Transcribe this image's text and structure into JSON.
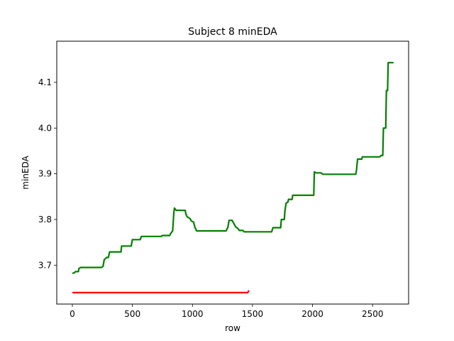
{
  "chart_data": {
    "type": "line",
    "title": "Subject 8 minEDA",
    "xlabel": "row",
    "ylabel": "minEDA",
    "xlim": [
      -130,
      2800
    ],
    "ylim": [
      3.615,
      4.19
    ],
    "xticks": [
      0,
      500,
      1000,
      1500,
      2000,
      2500
    ],
    "yticks": [
      3.7,
      3.8,
      3.9,
      4.0,
      4.1
    ],
    "ytick_labels": [
      "3.7",
      "3.8",
      "3.9",
      "4.0",
      "4.1"
    ],
    "grid": false,
    "series": [
      {
        "color": "#008000",
        "points": [
          [
            0,
            3.682
          ],
          [
            20,
            3.684
          ],
          [
            25,
            3.686
          ],
          [
            50,
            3.686
          ],
          [
            55,
            3.693
          ],
          [
            70,
            3.695
          ],
          [
            240,
            3.695
          ],
          [
            255,
            3.697
          ],
          [
            265,
            3.712
          ],
          [
            285,
            3.717
          ],
          [
            300,
            3.717
          ],
          [
            310,
            3.729
          ],
          [
            405,
            3.729
          ],
          [
            410,
            3.742
          ],
          [
            490,
            3.742
          ],
          [
            500,
            3.756
          ],
          [
            565,
            3.756
          ],
          [
            575,
            3.763
          ],
          [
            740,
            3.763
          ],
          [
            750,
            3.765
          ],
          [
            810,
            3.765
          ],
          [
            820,
            3.77
          ],
          [
            835,
            3.775
          ],
          [
            845,
            3.816
          ],
          [
            850,
            3.825
          ],
          [
            865,
            3.82
          ],
          [
            940,
            3.82
          ],
          [
            945,
            3.812
          ],
          [
            955,
            3.806
          ],
          [
            980,
            3.802
          ],
          [
            990,
            3.797
          ],
          [
            1010,
            3.794
          ],
          [
            1020,
            3.783
          ],
          [
            1035,
            3.775
          ],
          [
            1280,
            3.775
          ],
          [
            1295,
            3.783
          ],
          [
            1305,
            3.798
          ],
          [
            1330,
            3.798
          ],
          [
            1345,
            3.791
          ],
          [
            1360,
            3.784
          ],
          [
            1380,
            3.78
          ],
          [
            1390,
            3.776
          ],
          [
            1420,
            3.776
          ],
          [
            1430,
            3.773
          ],
          [
            1660,
            3.773
          ],
          [
            1670,
            3.782
          ],
          [
            1735,
            3.782
          ],
          [
            1740,
            3.8
          ],
          [
            1765,
            3.8
          ],
          [
            1770,
            3.818
          ],
          [
            1780,
            3.836
          ],
          [
            1795,
            3.838
          ],
          [
            1800,
            3.844
          ],
          [
            1830,
            3.844
          ],
          [
            1835,
            3.853
          ],
          [
            2010,
            3.853
          ],
          [
            2015,
            3.904
          ],
          [
            2030,
            3.902
          ],
          [
            2070,
            3.902
          ],
          [
            2085,
            3.899
          ],
          [
            2360,
            3.899
          ],
          [
            2365,
            3.906
          ],
          [
            2375,
            3.932
          ],
          [
            2410,
            3.932
          ],
          [
            2415,
            3.937
          ],
          [
            2560,
            3.937
          ],
          [
            2570,
            3.94
          ],
          [
            2585,
            3.94
          ],
          [
            2590,
            4.0
          ],
          [
            2610,
            4.0
          ],
          [
            2615,
            4.082
          ],
          [
            2625,
            4.082
          ],
          [
            2630,
            4.143
          ],
          [
            2675,
            4.143
          ]
        ]
      },
      {
        "color": "#ff0000",
        "points": [
          [
            0,
            3.64
          ],
          [
            1460,
            3.64
          ],
          [
            1465,
            3.642
          ],
          [
            1470,
            3.645
          ]
        ]
      }
    ]
  }
}
